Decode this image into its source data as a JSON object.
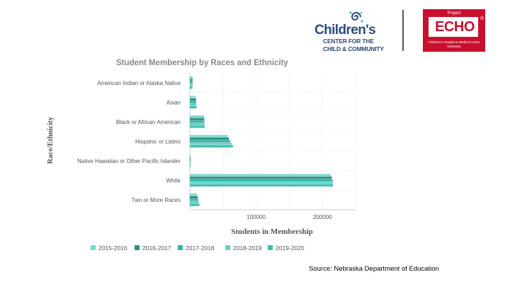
{
  "logos": {
    "childrens": {
      "name": "Children's",
      "line1": "CENTER FOR THE",
      "line2": "CHILD & COMMUNITY"
    },
    "echo": {
      "project": "Project",
      "name": "ECHO",
      "registered": "®",
      "tagline": "Children's Hospital & Medical Center Nebraska"
    }
  },
  "source": "Source: Nebraska Department of Education",
  "colors": {
    "2015-2016": "#7fd6cf",
    "2016-2017": "#2a8f85",
    "2017-2018": "#3ab3a6",
    "2018-2019": "#66cfc4",
    "2019-2020": "#43bfb0"
  },
  "chart_data": {
    "type": "bar",
    "orientation": "horizontal",
    "title": "Student Membership by Races and Ethnicity",
    "xlabel": "Students in Membership",
    "ylabel": "Race/Ethnicity",
    "xlim": [
      0,
      250000
    ],
    "xticks": [
      100000,
      200000
    ],
    "xtick_labels": [
      "100000",
      "200000"
    ],
    "grid": true,
    "legend_position": "bottom",
    "categories": [
      "American Indian or Alaska Native",
      "Asian",
      "Black or African American",
      "Hispanic or Latino",
      "Native Hawaiian or Other Pacific Islander",
      "White",
      "Two or More Races"
    ],
    "series": [
      {
        "name": "2015-2016",
        "values": [
          4200,
          9000,
          21500,
          57000,
          1100,
          213000,
          11000
        ]
      },
      {
        "name": "2016-2017",
        "values": [
          4200,
          9300,
          21800,
          59000,
          1150,
          214000,
          12000
        ]
      },
      {
        "name": "2017-2018",
        "values": [
          4100,
          9600,
          22000,
          61000,
          1200,
          215500,
          12800
        ]
      },
      {
        "name": "2018-2019",
        "values": [
          4100,
          9900,
          22200,
          63000,
          1250,
          215800,
          13600
        ]
      },
      {
        "name": "2019-2020",
        "values": [
          4000,
          10200,
          22400,
          65000,
          1300,
          216000,
          14500
        ]
      }
    ]
  }
}
